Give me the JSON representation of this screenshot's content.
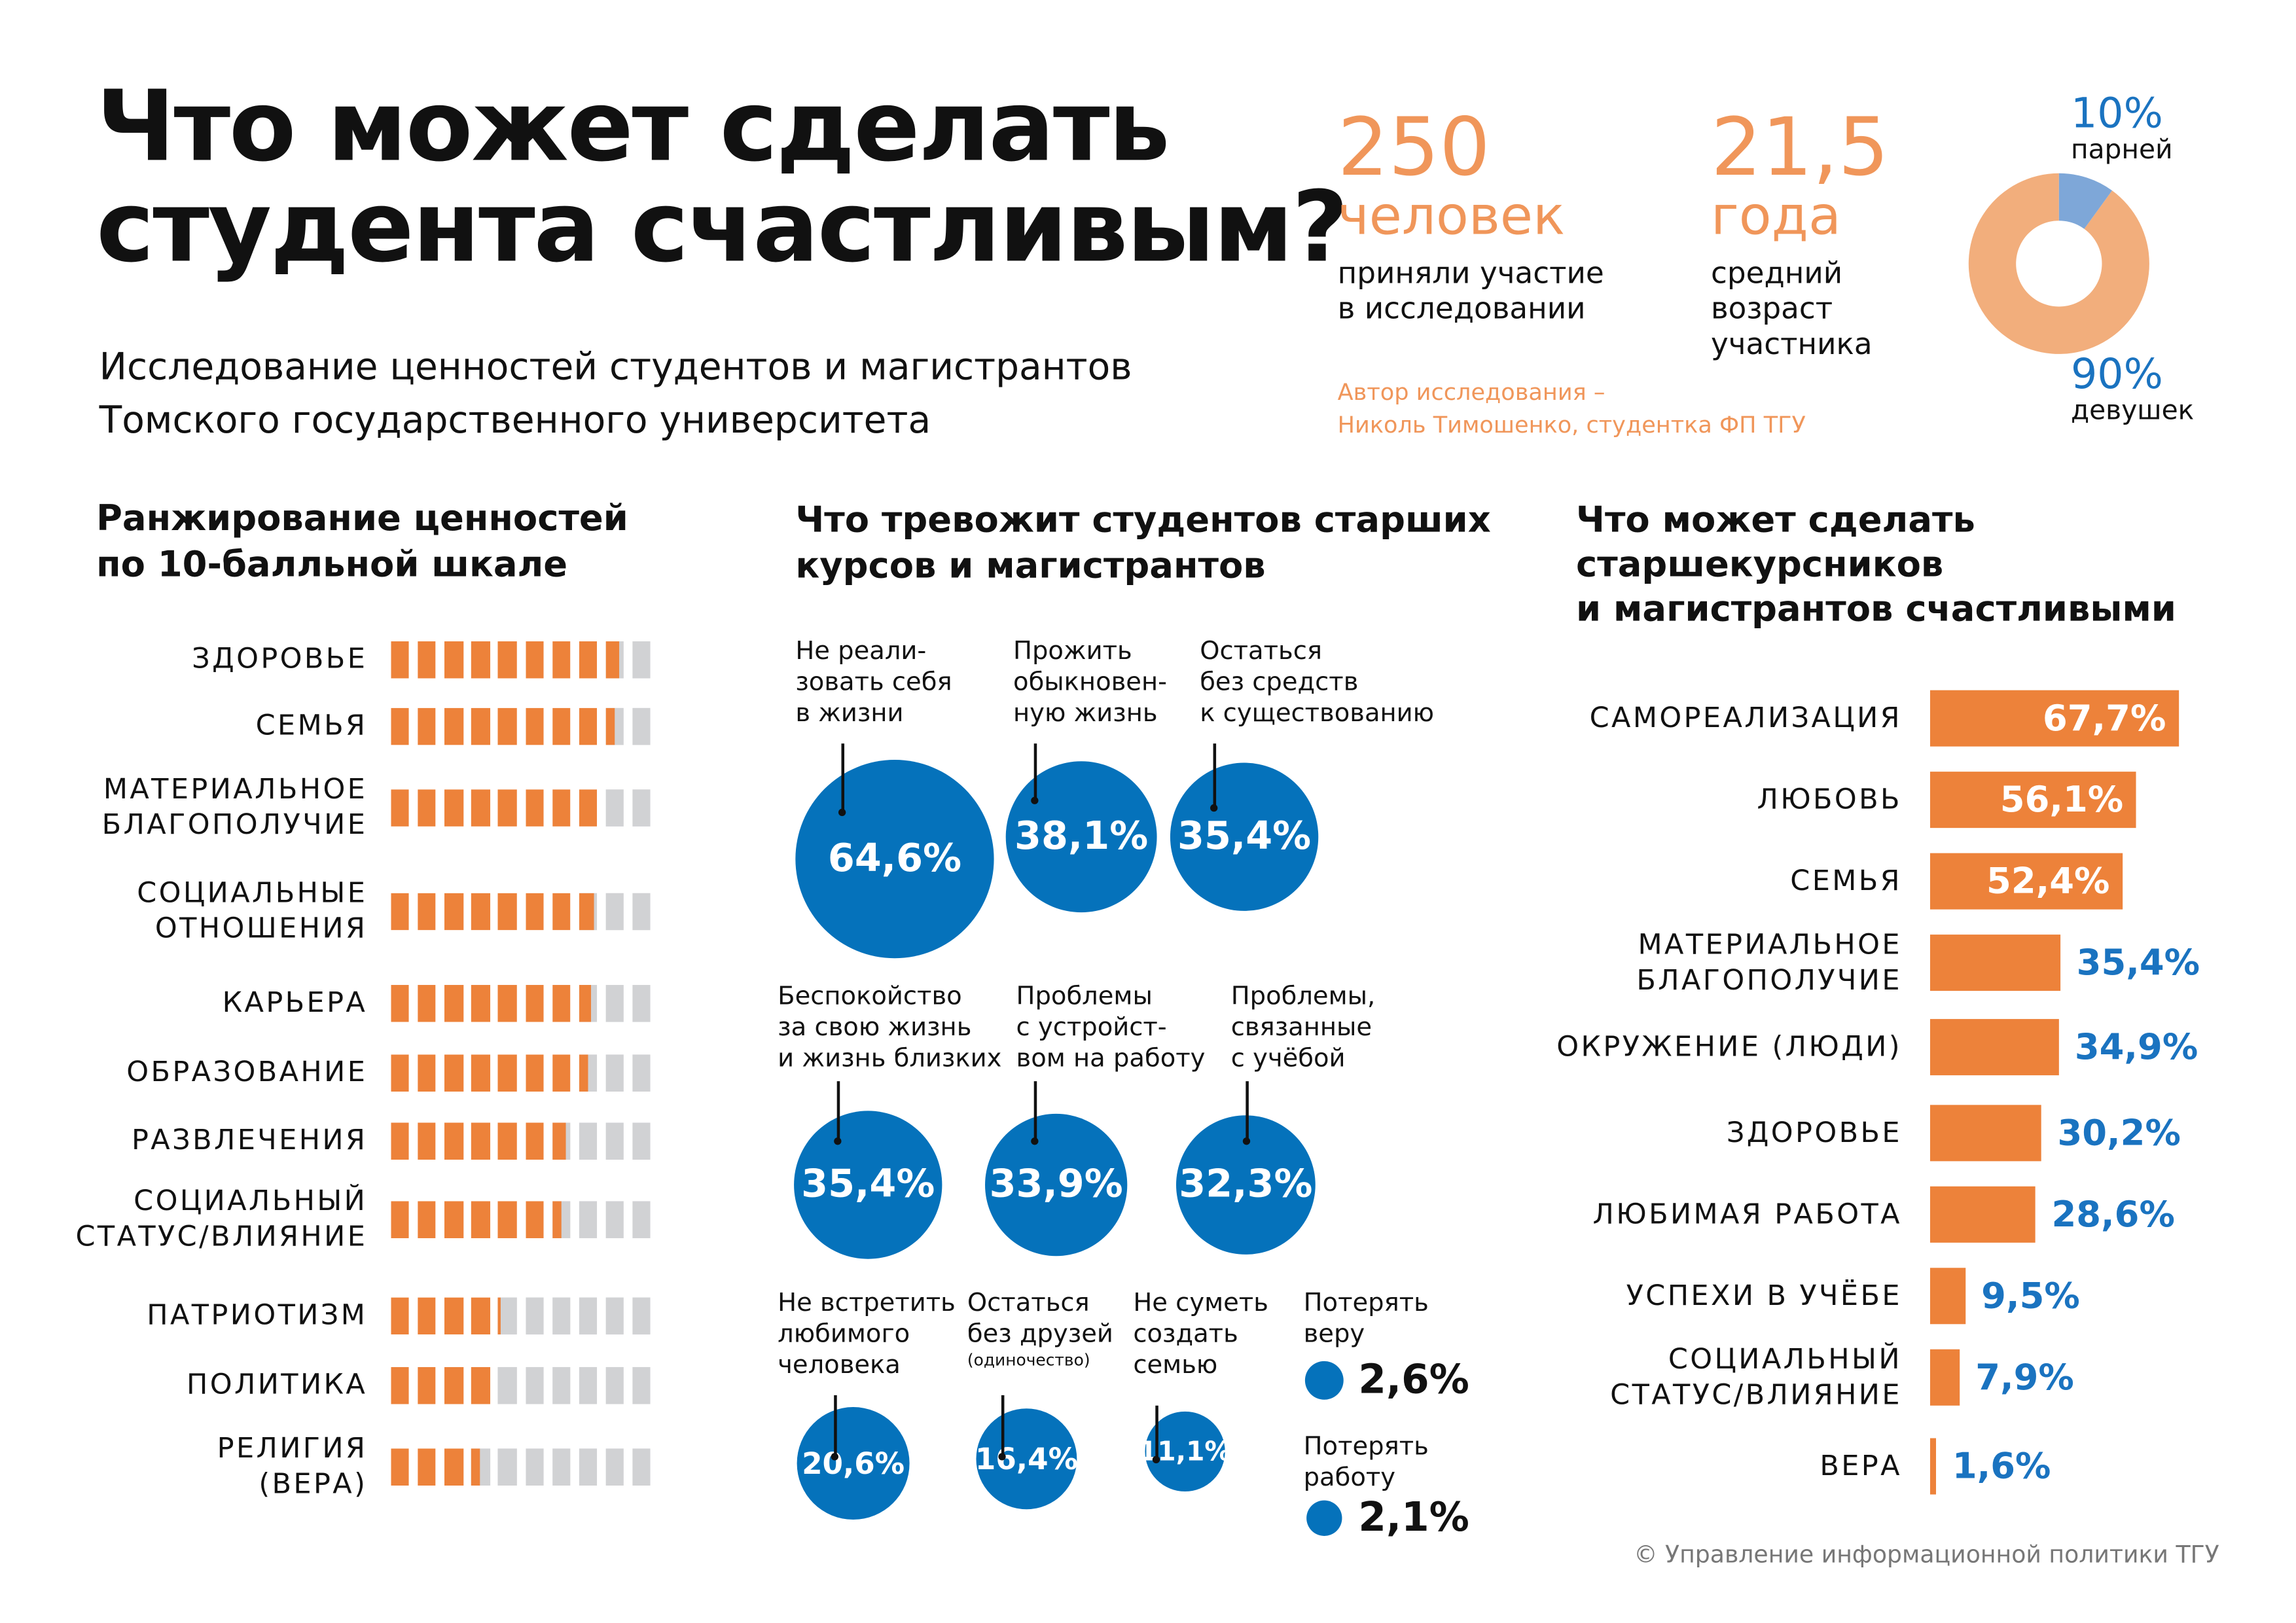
{
  "header": {
    "title_line1": "Что может сделать",
    "title_line2": "студента счастливым?",
    "subtitle_line1": "Исследование ценностей студентов и магистрантов",
    "subtitle_line2": "Томского государственного университета"
  },
  "stats": {
    "participants_value": "250",
    "participants_unit": "человек",
    "participants_desc1": "приняли участие",
    "participants_desc2": "в исследовании",
    "age_value": "21,5",
    "age_unit": "года",
    "age_desc1": "средний",
    "age_desc2": "возраст",
    "age_desc3": "участника",
    "author_line1": "Автор исследования –",
    "author_line2": "Николь Тимошенко, студентка ФП ТГУ"
  },
  "colors": {
    "orange": "#ed823a",
    "light_orange": "#f2ae7c",
    "blue": "#0572bb",
    "light_blue": "#7ea7d8",
    "gray": "#d1d2d4"
  },
  "chart_data": [
    {
      "type": "pie",
      "categories": [
        "парней",
        "девушек"
      ],
      "values": [
        10,
        90
      ],
      "labels": [
        "10%",
        "90%"
      ]
    },
    {
      "type": "bar",
      "title": "Ранжирование ценностей по 10-балльной шкале",
      "categories": [
        "ЗДОРОВЬЕ",
        "СЕМЬЯ",
        "МАТЕРИАЛЬНОЕ БЛАГОПОЛУЧИЕ",
        "СОЦИАЛЬНЫЕ ОТНОШЕНИЯ",
        "КАРЬЕРА",
        "ОБРАЗОВАНИЕ",
        "РАЗВЛЕЧЕНИЯ",
        "СОЦИАЛЬНЫЙ СТАТУС/ВЛИЯНИЕ",
        "ПАТРИОТИЗМ",
        "ПОЛИТИКА",
        "РЕЛИГИЯ (ВЕРА)"
      ],
      "label_lines": [
        [
          "ЗДОРОВЬЕ"
        ],
        [
          "СЕМЬЯ"
        ],
        [
          "МАТЕРИАЛЬНОЕ",
          "БЛАГОПОЛУЧИЕ"
        ],
        [
          "СОЦИАЛЬНЫЕ",
          "ОТНОШЕНИЯ"
        ],
        [
          "КАРЬЕРА"
        ],
        [
          "ОБРАЗОВАНИЕ"
        ],
        [
          "РАЗВЛЕЧЕНИЯ"
        ],
        [
          "СОЦИАЛЬНЫЙ",
          "СТАТУС/ВЛИЯНИЕ"
        ],
        [
          "ПАТРИОТИЗМ"
        ],
        [
          "ПОЛИТИКА"
        ],
        [
          "РЕЛИГИЯ",
          "(ВЕРА)"
        ]
      ],
      "values": [
        8.75,
        8.5,
        8.0,
        7.85,
        7.7,
        7.5,
        6.75,
        6.55,
        4.15,
        4.0,
        3.5
      ],
      "ylim": [
        0,
        10
      ]
    },
    {
      "type": "bubble",
      "title": "Что тревожит студентов старших курсов и магистрантов",
      "items": [
        {
          "label": [
            "Не реали-",
            "зовать себя",
            "в жизни"
          ],
          "value": 64.6,
          "text": "64,6%"
        },
        {
          "label": [
            "Прожить",
            "обыкновен-",
            "ную жизнь"
          ],
          "value": 38.1,
          "text": "38,1%"
        },
        {
          "label": [
            "Остаться",
            "без средств",
            "к существованию"
          ],
          "value": 35.4,
          "text": "35,4%"
        },
        {
          "label": [
            "Беспокойство",
            "за свою жизнь",
            "и жизнь близких"
          ],
          "value": 35.4,
          "text": "35,4%"
        },
        {
          "label": [
            "Проблемы",
            "с устройст-",
            "вом на работу"
          ],
          "value": 33.9,
          "text": "33,9%"
        },
        {
          "label": [
            "Проблемы,",
            "связанные",
            "с учёбой"
          ],
          "value": 32.3,
          "text": "32,3%"
        },
        {
          "label": [
            "Не встретить",
            "любимого",
            "человека"
          ],
          "value": 20.6,
          "text": "20,6%"
        },
        {
          "label": [
            "Остаться",
            "без друзей"
          ],
          "note": "(одиночество)",
          "value": 16.4,
          "text": "16,4%"
        },
        {
          "label": [
            "Не суметь",
            "создать",
            "семью"
          ],
          "value": 11.1,
          "text": "11,1%"
        },
        {
          "label": [
            "Потерять",
            "веру"
          ],
          "value": 2.6,
          "text": "2,6%"
        },
        {
          "label": [
            "Потерять",
            "работу"
          ],
          "value": 2.1,
          "text": "2,1%"
        }
      ]
    },
    {
      "type": "bar",
      "orientation": "horizontal",
      "title": "Что может сделать старшекурсников и магистрантов счастливыми",
      "categories": [
        "САМОРЕАЛИЗАЦИЯ",
        "ЛЮБОВЬ",
        "СЕМЬЯ",
        "МАТЕРИАЛЬНОЕ БЛАГОПОЛУЧИЕ",
        "ОКРУЖЕНИЕ (ЛЮДИ)",
        "ЗДОРОВЬЕ",
        "ЛЮБИМАЯ РАБОТА",
        "УСПЕХИ В УЧЁБЕ",
        "СОЦИАЛЬНЫЙ СТАТУС/ВЛИЯНИЕ",
        "ВЕРА"
      ],
      "label_lines": [
        [
          "САМОРЕАЛИЗАЦИЯ"
        ],
        [
          "ЛЮБОВЬ"
        ],
        [
          "СЕМЬЯ"
        ],
        [
          "МАТЕРИАЛЬНОЕ",
          "БЛАГОПОЛУЧИЕ"
        ],
        [
          "ОКРУЖЕНИЕ (ЛЮДИ)"
        ],
        [
          "ЗДОРОВЬЕ"
        ],
        [
          "ЛЮБИМАЯ РАБОТА"
        ],
        [
          "УСПЕХИ В УЧЁБЕ"
        ],
        [
          "СОЦИАЛЬНЫЙ",
          "СТАТУС/ВЛИЯНИЕ"
        ],
        [
          "ВЕРА"
        ]
      ],
      "values": [
        67.7,
        56.1,
        52.4,
        35.4,
        34.9,
        30.2,
        28.6,
        9.5,
        7.9,
        1.6
      ],
      "value_labels": [
        "67,7%",
        "56,1%",
        "52,4%",
        "35,4%",
        "34,9%",
        "30,2%",
        "28,6%",
        "9,5%",
        "7,9%",
        "1,6%"
      ]
    }
  ],
  "sections": {
    "ranking_title1": "Ранжирование ценностей",
    "ranking_title2": "по 10-балльной шкале",
    "worries_title1": "Что тревожит студентов старших",
    "worries_title2": "курсов и магистрантов",
    "happy_title1": "Что может сделать",
    "happy_title2": "старшекурсников",
    "happy_title3": "и магистрантов счастливыми"
  },
  "footer": "© Управление информационной политики ТГУ"
}
